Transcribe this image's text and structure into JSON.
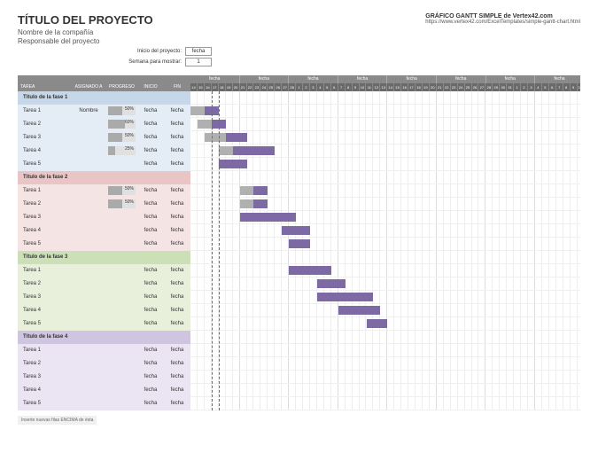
{
  "header": {
    "title": "TÍTULO DEL PROYECTO",
    "company": "Nombre de la compañía",
    "manager": "Responsable del proyecto",
    "source_title": "GRÁFICO GANTT SIMPLE de Vertex42.com",
    "source_url": "https://www.vertex42.com/ExcelTemplates/simple-gantt-chart.html"
  },
  "controls": {
    "start_label": "Inicio del proyecto:",
    "start_value": "fecha",
    "week_label": "Semana para mostrar:",
    "week_value": "1"
  },
  "columns": {
    "task": "TAREA",
    "assigned": "ASIGNADO A",
    "progress": "PROGRESO",
    "start": "INICIO",
    "end": "FIN"
  },
  "timeline": {
    "num_days": 56,
    "week_label": "fecha",
    "day_numbers": [
      "14",
      "15",
      "16",
      "17",
      "18",
      "19",
      "20",
      "21",
      "22",
      "23",
      "24",
      "25",
      "26",
      "27",
      "28",
      "1",
      "2",
      "3",
      "4",
      "5",
      "6",
      "7",
      "8",
      "9",
      "10",
      "11",
      "12",
      "13",
      "14",
      "15",
      "16",
      "17",
      "18",
      "19",
      "20",
      "21",
      "22",
      "23",
      "24",
      "25",
      "26",
      "27",
      "28",
      "29",
      "30",
      "31",
      "1",
      "2",
      "3",
      "4",
      "5",
      "6",
      "7",
      "8",
      "9",
      "10"
    ],
    "today_col": 3,
    "cell_width": 7.94
  },
  "phases": [
    {
      "title": "Título de la fase 1",
      "color_class": "1",
      "tasks": [
        {
          "name": "Tarea 1",
          "assigned": "Nombre",
          "progress": 50,
          "start": "fecha",
          "end": "fecha",
          "bar_start": 0,
          "bar_len": 4,
          "grey_len": 2
        },
        {
          "name": "Tarea 2",
          "assigned": "",
          "progress": 60,
          "start": "fecha",
          "end": "fecha",
          "bar_start": 1,
          "bar_len": 4,
          "grey_len": 2
        },
        {
          "name": "Tarea 3",
          "assigned": "",
          "progress": 50,
          "start": "fecha",
          "end": "fecha",
          "bar_start": 2,
          "bar_len": 6,
          "grey_len": 3
        },
        {
          "name": "Tarea 4",
          "assigned": "",
          "progress": 25,
          "start": "fecha",
          "end": "fecha",
          "bar_start": 4,
          "bar_len": 8,
          "grey_len": 2
        },
        {
          "name": "Tarea 5",
          "assigned": "",
          "progress": null,
          "start": "fecha",
          "end": "fecha",
          "bar_start": 4,
          "bar_len": 4,
          "grey_len": 0
        }
      ]
    },
    {
      "title": "Título de la fase 2",
      "color_class": "2",
      "tasks": [
        {
          "name": "Tarea 1",
          "assigned": "",
          "progress": 50,
          "start": "fecha",
          "end": "fecha",
          "bar_start": 7,
          "bar_len": 4,
          "grey_len": 2
        },
        {
          "name": "Tarea 2",
          "assigned": "",
          "progress": 50,
          "start": "fecha",
          "end": "fecha",
          "bar_start": 7,
          "bar_len": 4,
          "grey_len": 2
        },
        {
          "name": "Tarea 3",
          "assigned": "",
          "progress": null,
          "start": "fecha",
          "end": "fecha",
          "bar_start": 7,
          "bar_len": 8,
          "grey_len": 0
        },
        {
          "name": "Tarea 4",
          "assigned": "",
          "progress": null,
          "start": "fecha",
          "end": "fecha",
          "bar_start": 13,
          "bar_len": 4,
          "grey_len": 0
        },
        {
          "name": "Tarea 5",
          "assigned": "",
          "progress": null,
          "start": "fecha",
          "end": "fecha",
          "bar_start": 14,
          "bar_len": 3,
          "grey_len": 0
        }
      ]
    },
    {
      "title": "Título de la fase 3",
      "color_class": "3",
      "tasks": [
        {
          "name": "Tarea 1",
          "assigned": "",
          "progress": null,
          "start": "fecha",
          "end": "fecha",
          "bar_start": 14,
          "bar_len": 6,
          "grey_len": 0
        },
        {
          "name": "Tarea 2",
          "assigned": "",
          "progress": null,
          "start": "fecha",
          "end": "fecha",
          "bar_start": 18,
          "bar_len": 4,
          "grey_len": 0
        },
        {
          "name": "Tarea 3",
          "assigned": "",
          "progress": null,
          "start": "fecha",
          "end": "fecha",
          "bar_start": 18,
          "bar_len": 8,
          "grey_len": 0
        },
        {
          "name": "Tarea 4",
          "assigned": "",
          "progress": null,
          "start": "fecha",
          "end": "fecha",
          "bar_start": 21,
          "bar_len": 6,
          "grey_len": 0
        },
        {
          "name": "Tarea 5",
          "assigned": "",
          "progress": null,
          "start": "fecha",
          "end": "fecha",
          "bar_start": 25,
          "bar_len": 3,
          "grey_len": 0
        }
      ]
    },
    {
      "title": "Título de la fase 4",
      "color_class": "4",
      "tasks": [
        {
          "name": "Tarea 1",
          "assigned": "",
          "progress": null,
          "start": "fecha",
          "end": "fecha",
          "bar_start": 0,
          "bar_len": 0,
          "grey_len": 0
        },
        {
          "name": "Tarea 2",
          "assigned": "",
          "progress": null,
          "start": "fecha",
          "end": "fecha",
          "bar_start": 0,
          "bar_len": 0,
          "grey_len": 0
        },
        {
          "name": "Tarea 3",
          "assigned": "",
          "progress": null,
          "start": "fecha",
          "end": "fecha",
          "bar_start": 0,
          "bar_len": 0,
          "grey_len": 0
        },
        {
          "name": "Tarea 4",
          "assigned": "",
          "progress": null,
          "start": "fecha",
          "end": "fecha",
          "bar_start": 0,
          "bar_len": 0,
          "grey_len": 0
        },
        {
          "name": "Tarea 5",
          "assigned": "",
          "progress": null,
          "start": "fecha",
          "end": "fecha",
          "bar_start": 0,
          "bar_len": 0,
          "grey_len": 0
        }
      ]
    }
  ],
  "footer": "Inserte nuevas filas ENCIMA de ésta"
}
